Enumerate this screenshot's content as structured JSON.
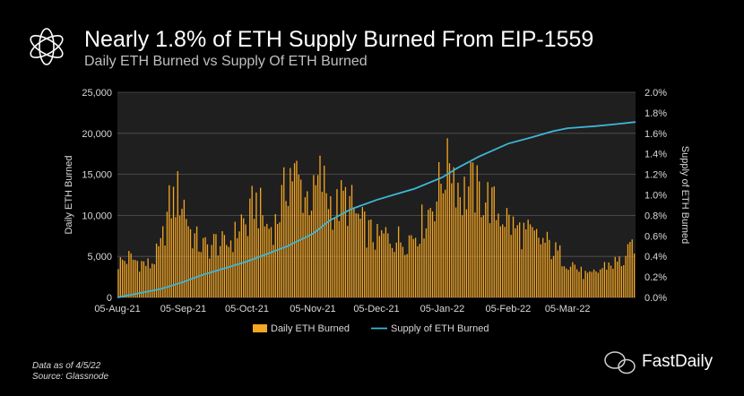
{
  "header": {
    "title": "Nearly 1.8% of ETH Supply Burned From EIP-1559",
    "subtitle": "Daily ETH Burned vs Supply Of ETH Burned"
  },
  "footer": {
    "data_as_of": "Data as of 4/5/22",
    "source": "Source: Glassnode",
    "watermark": "FastDaily"
  },
  "colors": {
    "bar": "#f5a623",
    "line": "#3eb6d6",
    "plot_bg": "#1f1f1f",
    "grid": "#555555"
  },
  "chart_data": {
    "type": "bar",
    "title": "Nearly 1.8% of ETH Supply Burned From EIP-1559",
    "subtitle": "Daily ETH Burned vs Supply Of ETH Burned",
    "xlabel": "",
    "ylabel": "Daily ETH Burned",
    "ylabel_right": "Supply of ETH Burned",
    "ylim": [
      0,
      25000
    ],
    "ylim_right": [
      0,
      0.02
    ],
    "y_ticks": [
      "0",
      "5,000",
      "10,000",
      "15,000",
      "20,000",
      "25,000"
    ],
    "y_right_ticks": [
      "0.0%",
      "0.2%",
      "0.4%",
      "0.6%",
      "0.8%",
      "1.0%",
      "1.2%",
      "1.4%",
      "1.6%",
      "1.8%",
      "2.0%"
    ],
    "x_ticks": [
      {
        "label": "05-Aug-21",
        "day": 0
      },
      {
        "label": "05-Sep-21",
        "day": 31
      },
      {
        "label": "05-Oct-21",
        "day": 61
      },
      {
        "label": "05-Nov-21",
        "day": 92
      },
      {
        "label": "05-Dec-21",
        "day": 122
      },
      {
        "label": "05-Jan-22",
        "day": 153
      },
      {
        "label": "05-Feb-22",
        "day": 184
      },
      {
        "label": "05-Mar-22",
        "day": 212
      }
    ],
    "total_days": 244,
    "legend": [
      "Daily ETH Burned",
      "Supply of ETH Burned"
    ],
    "legend_position": "bottom-center",
    "series": [
      {
        "name": "Daily ETH Burned",
        "type": "bar",
        "keypoints": [
          [
            0,
            4200
          ],
          [
            5,
            4800
          ],
          [
            10,
            4300
          ],
          [
            15,
            3900
          ],
          [
            20,
            6000
          ],
          [
            24,
            11000
          ],
          [
            28,
            12500
          ],
          [
            31,
            11500
          ],
          [
            34,
            8000
          ],
          [
            38,
            6500
          ],
          [
            42,
            6000
          ],
          [
            46,
            6800
          ],
          [
            50,
            6200
          ],
          [
            55,
            7500
          ],
          [
            58,
            9500
          ],
          [
            61,
            8500
          ],
          [
            64,
            12000
          ],
          [
            67,
            10500
          ],
          [
            70,
            8500
          ],
          [
            74,
            9000
          ],
          [
            78,
            12500
          ],
          [
            81,
            15500
          ],
          [
            84,
            14500
          ],
          [
            88,
            12500
          ],
          [
            92,
            12000
          ],
          [
            95,
            14500
          ],
          [
            98,
            13000
          ],
          [
            102,
            10500
          ],
          [
            106,
            12000
          ],
          [
            110,
            11000
          ],
          [
            114,
            9000
          ],
          [
            118,
            8000
          ],
          [
            122,
            7000
          ],
          [
            126,
            7500
          ],
          [
            130,
            7200
          ],
          [
            134,
            7000
          ],
          [
            138,
            7500
          ],
          [
            142,
            8500
          ],
          [
            146,
            10500
          ],
          [
            150,
            12500
          ],
          [
            153,
            15000
          ],
          [
            156,
            18000
          ],
          [
            159,
            14500
          ],
          [
            162,
            12500
          ],
          [
            166,
            13500
          ],
          [
            170,
            12500
          ],
          [
            174,
            12000
          ],
          [
            178,
            10500
          ],
          [
            182,
            10000
          ],
          [
            186,
            8500
          ],
          [
            190,
            8000
          ],
          [
            194,
            7500
          ],
          [
            198,
            7000
          ],
          [
            202,
            6500
          ],
          [
            206,
            5500
          ],
          [
            210,
            4800
          ],
          [
            214,
            4200
          ],
          [
            218,
            3000
          ],
          [
            222,
            2500
          ],
          [
            226,
            3200
          ],
          [
            230,
            4000
          ],
          [
            234,
            4200
          ],
          [
            238,
            4500
          ],
          [
            241,
            5500
          ],
          [
            243,
            7000
          ]
        ],
        "values": []
      },
      {
        "name": "Supply of ETH Burned",
        "type": "line",
        "points": [
          [
            0,
            0
          ],
          [
            10,
            0.0004
          ],
          [
            20,
            0.0008
          ],
          [
            31,
            0.0015
          ],
          [
            40,
            0.0022
          ],
          [
            50,
            0.0028
          ],
          [
            61,
            0.0035
          ],
          [
            70,
            0.0042
          ],
          [
            80,
            0.005
          ],
          [
            92,
            0.0062
          ],
          [
            100,
            0.0075
          ],
          [
            110,
            0.0086
          ],
          [
            122,
            0.0095
          ],
          [
            130,
            0.01
          ],
          [
            140,
            0.0106
          ],
          [
            153,
            0.0117
          ],
          [
            160,
            0.0126
          ],
          [
            170,
            0.0137
          ],
          [
            184,
            0.015
          ],
          [
            195,
            0.0156
          ],
          [
            205,
            0.0162
          ],
          [
            212,
            0.0165
          ],
          [
            225,
            0.0167
          ],
          [
            235,
            0.0169
          ],
          [
            244,
            0.0171
          ]
        ]
      }
    ]
  }
}
